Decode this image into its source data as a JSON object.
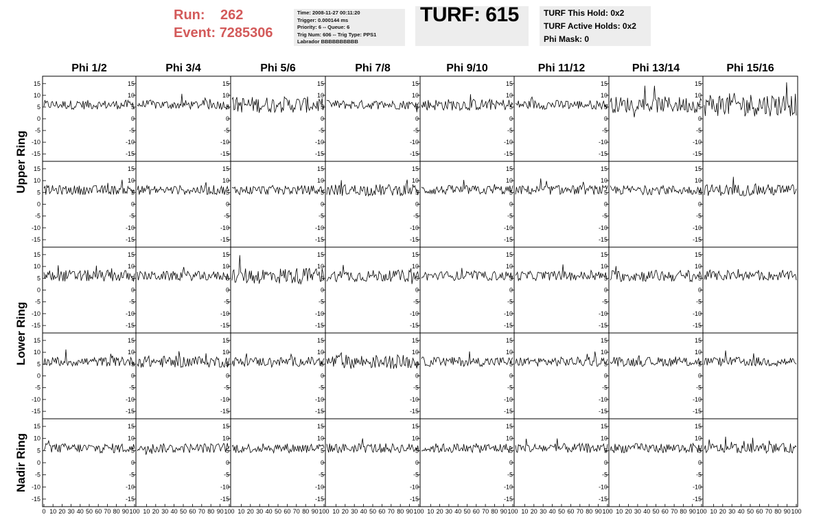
{
  "header": {
    "run_label": "Run:",
    "run_value": "262",
    "event_label": "Event:",
    "event_value": "7285306",
    "info_lines": [
      "Time: 2008-11-27 00:11:20",
      "Trigger: 0.000144 ms",
      "Priority: 6 -- Queue: 6",
      "Trig Num: 606 -- Trig Type: PPS1",
      "Labrador BBBBBBBBBB"
    ],
    "turf_text": "TURF: 615",
    "hold_lines": [
      "TURF This Hold: 0x2",
      "TURF Active Holds: 0x2",
      "Phi Mask: 0"
    ]
  },
  "colors": {
    "header_red": "#d35a5a",
    "info_bg": "#ededed",
    "trace": "#000000"
  },
  "chart_data": {
    "type": "line",
    "columns": [
      "Phi 1/2",
      "Phi 3/4",
      "Phi 5/6",
      "Phi 7/8",
      "Phi 9/10",
      "Phi 11/12",
      "Phi 13/14",
      "Phi 15/16"
    ],
    "rows": [
      "Upper Ring",
      "Upper Ring",
      "Lower Ring",
      "Lower Ring",
      "Nadir Ring"
    ],
    "row_labels": [
      "Upper Ring",
      "Lower Ring",
      "Nadir Ring"
    ],
    "ylim": [
      -17,
      17
    ],
    "yticks": [
      -15,
      -10,
      -5,
      0,
      5,
      10,
      15
    ],
    "xlim": [
      0,
      100
    ],
    "xticks": [
      0,
      10,
      20,
      30,
      40,
      50,
      60,
      70,
      80,
      90,
      100
    ],
    "samples": 96,
    "noise_amplitude": [
      [
        2.0,
        2.0,
        3.5,
        2.0,
        2.5,
        2.0,
        3.5,
        5.0
      ],
      [
        2.0,
        2.0,
        2.0,
        2.5,
        2.0,
        2.0,
        2.0,
        2.5
      ],
      [
        2.5,
        2.0,
        3.5,
        2.5,
        2.0,
        2.0,
        2.5,
        2.0
      ],
      [
        2.0,
        2.5,
        2.0,
        3.0,
        2.0,
        2.0,
        2.0,
        2.0
      ],
      [
        2.0,
        2.0,
        2.0,
        2.0,
        2.0,
        2.0,
        2.0,
        2.0
      ]
    ],
    "baseline": 6
  }
}
